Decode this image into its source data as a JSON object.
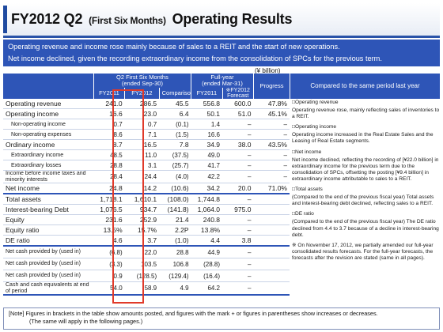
{
  "title": {
    "main": "FY2012 Q2",
    "period": "(First Six Months)",
    "suffix": "Operating Results"
  },
  "summary": {
    "line1": "Operating revenue and income rose mainly because of sales to a REIT and the start of new operations.",
    "line2": "Net income declined, given the recording extraordinary income from the consolidation of SPCs for the previous term."
  },
  "unit": "(¥ billion)",
  "table": {
    "header": {
      "q2_group": "Q2 First Six Months\n(ended Sep-30)",
      "fy_group": "Full-year\n(ended Mar-31)",
      "progress": "Progress",
      "fy2011_a": "FY2011",
      "fy2012_a": "FY2012",
      "comparison": "Comparison",
      "fy2011_b": "FY2011",
      "forecast": "※FY2012\nForecast"
    },
    "rows": [
      {
        "label": "Operating revenue",
        "fy2011": "241.0",
        "fy2012": "286.5",
        "cmp": "45.5",
        "full2011": "556.8",
        "forecast": "600.0",
        "progress": "47.8%"
      },
      {
        "label": "Operating income",
        "fy2011": "16.6",
        "fy2012": "23.0",
        "cmp": "6.4",
        "full2011": "50.1",
        "forecast": "51.0",
        "progress": "45.1%"
      },
      {
        "label": "Non-operating income",
        "fy2011": "0.7",
        "fy2012": "0.7",
        "cmp": "(0.1)",
        "full2011": "1.4",
        "forecast": "–",
        "progress": "–"
      },
      {
        "label": "Non-operating expenses",
        "fy2011": "8.6",
        "fy2012": "7.1",
        "cmp": "(1.5)",
        "full2011": "16.6",
        "forecast": "–",
        "progress": "–"
      },
      {
        "label": "Ordinary income",
        "fy2011": "8.7",
        "fy2012": "16.5",
        "cmp": "7.8",
        "full2011": "34.9",
        "forecast": "38.0",
        "progress": "43.5%"
      },
      {
        "label": "Extraordinary income",
        "fy2011": "48.5",
        "fy2012": "11.0",
        "cmp": "(37.5)",
        "full2011": "49.0",
        "forecast": "–",
        "progress": "–"
      },
      {
        "label": "Extraordinary losses",
        "fy2011": "28.8",
        "fy2012": "3.1",
        "cmp": "(25.7)",
        "full2011": "41.7",
        "forecast": "–",
        "progress": "–"
      },
      {
        "label": "Income before income taxes and minority interests",
        "fy2011": "28.4",
        "fy2012": "24.4",
        "cmp": "(4.0)",
        "full2011": "42.2",
        "forecast": "–",
        "progress": "–"
      },
      {
        "label": "Net income",
        "fy2011": "24.8",
        "fy2012": "14.2",
        "cmp": "(10.6)",
        "full2011": "34.2",
        "forecast": "20.0",
        "progress": "71.0%"
      },
      {
        "label": "Total assets",
        "fy2011": "1,718.1",
        "fy2012": "1,610.1",
        "cmp": "(108.0)",
        "full2011": "1,744.8",
        "forecast": "–",
        "progress": ""
      },
      {
        "label": "Interest-bearing Debt",
        "fy2011": "1,076.5",
        "fy2012": "934.7",
        "cmp": "(141.8)",
        "full2011": "1,064.0",
        "forecast": "975.0",
        "progress": ""
      },
      {
        "label": "Equity",
        "fy2011": "231.6",
        "fy2012": "252.9",
        "cmp": "21.4",
        "full2011": "240.8",
        "forecast": "–",
        "progress": ""
      },
      {
        "label": "Equity ratio",
        "fy2011": "13.5%",
        "fy2012": "15.7%",
        "cmp": "2.2P",
        "full2011": "13.8%",
        "forecast": "–",
        "progress": ""
      },
      {
        "label": "DE ratio",
        "fy2011": "4.6",
        "fy2012": "3.7",
        "cmp": "(1.0)",
        "full2011": "4.4",
        "forecast": "3.8",
        "progress": ""
      },
      {
        "label": "Net cash provided by (used in)",
        "fy2011": "(6.8)",
        "fy2012": "22.0",
        "cmp": "28.8",
        "full2011": "44.9",
        "forecast": "–",
        "progress": ""
      },
      {
        "label": "Net cash provided by (used in)",
        "fy2011": "(3.3)",
        "fy2012": "103.5",
        "cmp": "106.8",
        "full2011": "(28.8)",
        "forecast": "–",
        "progress": ""
      },
      {
        "label": "Net cash provided by (used in)",
        "fy2011": "0.9",
        "fy2012": "(128.5)",
        "cmp": "(129.4)",
        "full2011": "(16.4)",
        "forecast": "–",
        "progress": ""
      },
      {
        "label": "Cash and cash equivalents at end of period",
        "fy2011": "54.0",
        "fy2012": "58.9",
        "cmp": "4.9",
        "full2011": "64.2",
        "forecast": "–",
        "progress": ""
      }
    ]
  },
  "comparison": {
    "header": "Compared to the same period last year",
    "op_rev_head": "□Operating revenue",
    "op_rev_body": "Operating revenue rose, mainly reflecting sales of inventories to a REIT.",
    "op_inc_head": "□Operating income",
    "op_inc_body": "Operating income increased in the Real Estate Sales and the Leasing of Real Estate segments.",
    "net_head": "□Net income",
    "net_body": "Net income declined, reflecting the recording of [¥22.0 billion] in extraordinary income for the previous term due to the consolidation of SPCs, offsetting the posting [¥9.4 billion] in extraordinary income attributable to sales to a REIT.",
    "assets_head": "□Total assets",
    "assets_body": "(Compared to the end of the previous fiscal year) Total assets and interest-bearing debt declined, reflecting sales to a REIT.",
    "de_head": "□DE ratio",
    "de_body": "(Compared to the end of the previous fiscal year) The DE ratio declined from 4.4 to 3.7 because of a decline in interest-bearing debt.",
    "forecast_note": "※ On November 17, 2012, we partially amended our full-year consolidated results forecasts. For the full-year forecasts, the forecasts after the revision are stated (same in all pages)."
  },
  "note": {
    "line1": "[Note] Figures in brackets in the table show amounts posted, and figures with the mark + or figures in parentheses show increases or decreases.",
    "line2": "(The same will apply in the following pages.)"
  },
  "colors": {
    "accent_blue": "#2e55b7",
    "highlight_red": "#e03a2a"
  }
}
